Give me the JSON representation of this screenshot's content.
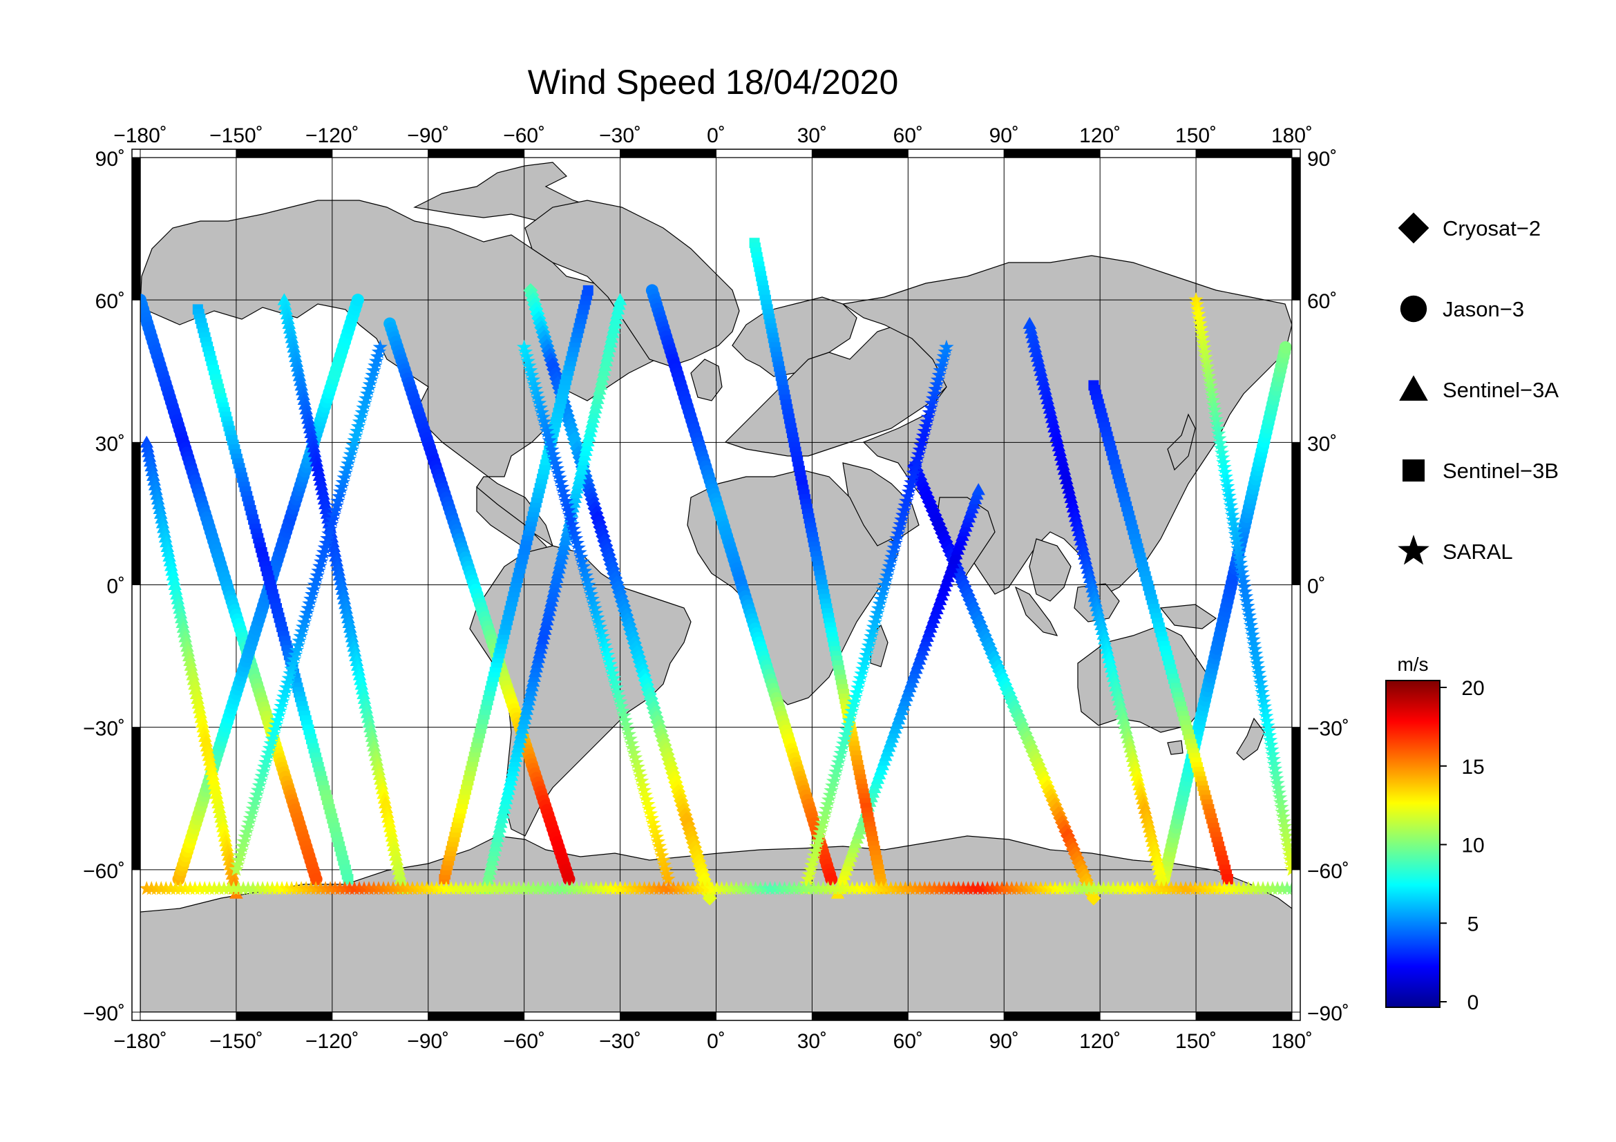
{
  "title": "Wind Speed 18/04/2020",
  "map": {
    "lon_range": [
      -180,
      180
    ],
    "lat_range": [
      -90,
      90
    ],
    "lon_ticks": [
      -180,
      -150,
      -120,
      -90,
      -60,
      -30,
      0,
      30,
      60,
      90,
      120,
      150,
      180
    ],
    "lat_ticks": [
      -90,
      -60,
      -30,
      0,
      30,
      60,
      90
    ],
    "lon_tick_labels": [
      "−180˚",
      "−150˚",
      "−120˚",
      "−90˚",
      "−60˚",
      "−30˚",
      "0˚",
      "30˚",
      "60˚",
      "90˚",
      "120˚",
      "150˚",
      "180˚"
    ],
    "lat_tick_labels": [
      "−90˚",
      "−60˚",
      "−30˚",
      "0˚",
      "30˚",
      "60˚",
      "90˚"
    ],
    "grid": true,
    "ocean_color": "#ffffff",
    "land_color": "#bebebe",
    "coast_color": "#000000"
  },
  "legend": {
    "placement": "right",
    "items": [
      {
        "label": "Cryosat−2",
        "marker": "diamond-icon"
      },
      {
        "label": "Jason−3",
        "marker": "circle-icon"
      },
      {
        "label": "Sentinel−3A",
        "marker": "triangle-icon"
      },
      {
        "label": "Sentinel−3B",
        "marker": "square-icon"
      },
      {
        "label": "SARAL",
        "marker": "star-icon"
      }
    ]
  },
  "colorbar": {
    "unit": "m/s",
    "min": 0,
    "max": 20,
    "ticks": [
      0,
      5,
      10,
      15,
      20
    ],
    "tick_labels": [
      "0",
      "5",
      "10",
      "15",
      "20"
    ],
    "colormap": "jet",
    "colors": [
      "#00008f",
      "#0000ff",
      "#007fff",
      "#00ffff",
      "#7fff7f",
      "#ffff00",
      "#ff7f00",
      "#ff0000",
      "#7f0000"
    ]
  },
  "chart_data": {
    "type": "scatter",
    "title": "Wind Speed 18/04/2020",
    "xlabel": "",
    "ylabel": "",
    "xlim": [
      -180,
      180
    ],
    "ylim": [
      -90,
      90
    ],
    "value_unit": "m/s",
    "series": [
      {
        "name": "Cryosat−2",
        "tracks": [
          {
            "start": [
              -58,
              62
            ],
            "end": [
              -2,
              -66
            ],
            "values": [
              9,
              4,
              6,
              3,
              5,
              7,
              11,
              14,
              12
            ]
          },
          {
            "start": [
              62,
              25
            ],
            "end": [
              118,
              -66
            ],
            "values": [
              3,
              2,
              4,
              6,
              9,
              12,
              16,
              13
            ]
          }
        ]
      },
      {
        "name": "Jason−3",
        "tracks": [
          {
            "start": [
              -180,
              60
            ],
            "end": [
              -125,
              -62
            ],
            "values": [
              5,
              4,
              3,
              5,
              6,
              9,
              12,
              15,
              16
            ]
          },
          {
            "start": [
              -168,
              -62
            ],
            "end": [
              -112,
              60
            ],
            "values": [
              14,
              11,
              8,
              6,
              5,
              4,
              6,
              8,
              7
            ]
          },
          {
            "start": [
              -102,
              55
            ],
            "end": [
              -46,
              -62
            ],
            "values": [
              6,
              4,
              3,
              5,
              8,
              11,
              14,
              17,
              18
            ]
          },
          {
            "start": [
              -20,
              62
            ],
            "end": [
              36,
              -62
            ],
            "values": [
              5,
              3,
              4,
              6,
              5,
              8,
              12,
              15,
              17
            ]
          },
          {
            "start": [
              140,
              -62
            ],
            "end": [
              178,
              50
            ],
            "values": [
              12,
              9,
              7,
              5,
              4,
              6,
              8,
              10
            ]
          }
        ]
      },
      {
        "name": "Sentinel−3A",
        "tracks": [
          {
            "start": [
              -178,
              30
            ],
            "end": [
              -150,
              -65
            ],
            "values": [
              4,
              6,
              8,
              11,
              13,
              12,
              15
            ]
          },
          {
            "start": [
              -135,
              60
            ],
            "end": [
              -98,
              -64
            ],
            "values": [
              7,
              5,
              3,
              4,
              6,
              9,
              13,
              11
            ]
          },
          {
            "start": [
              -72,
              -64
            ],
            "end": [
              -30,
              60
            ],
            "values": [
              10,
              8,
              6,
              4,
              5,
              7,
              9,
              8
            ]
          },
          {
            "start": [
              38,
              -65
            ],
            "end": [
              82,
              20
            ],
            "values": [
              13,
              10,
              7,
              5,
              3,
              2,
              4
            ]
          },
          {
            "start": [
              98,
              55
            ],
            "end": [
              140,
              -64
            ],
            "values": [
              4,
              3,
              2,
              4,
              7,
              10,
              14,
              12
            ]
          }
        ]
      },
      {
        "name": "Sentinel−3B",
        "tracks": [
          {
            "start": [
              -162,
              58
            ],
            "end": [
              -115,
              -62
            ],
            "values": [
              6,
              8,
              5,
              3,
              4,
              7,
              10,
              9
            ]
          },
          {
            "start": [
              -85,
              -62
            ],
            "end": [
              -40,
              62
            ],
            "values": [
              15,
              12,
              9,
              6,
              5,
              7,
              6,
              4
            ]
          },
          {
            "start": [
              12,
              72
            ],
            "end": [
              52,
              -64
            ],
            "values": [
              8,
              6,
              4,
              3,
              5,
              8,
              13,
              16,
              14
            ]
          },
          {
            "start": [
              118,
              42
            ],
            "end": [
              160,
              -62
            ],
            "values": [
              3,
              4,
              5,
              6,
              8,
              11,
              15,
              17
            ]
          }
        ]
      },
      {
        "name": "SARAL",
        "tracks": [
          {
            "start": [
              -150,
              -60
            ],
            "end": [
              -105,
              50
            ],
            "values": [
              11,
              9,
              7,
              5,
              4,
              6,
              5
            ]
          },
          {
            "start": [
              -60,
              50
            ],
            "end": [
              -15,
              -62
            ],
            "values": [
              7,
              5,
              4,
              6,
              9,
              12,
              14
            ]
          },
          {
            "start": [
              28,
              -64
            ],
            "end": [
              72,
              50
            ],
            "values": [
              12,
              10,
              8,
              6,
              4,
              3,
              5
            ]
          },
          {
            "start": [
              150,
              60
            ],
            "end": [
              180,
              -60
            ],
            "values": [
              13,
              10,
              7,
              5,
              6,
              9,
              12
            ]
          },
          {
            "start": [
              -178,
              -64
            ],
            "end": [
              180,
              -64
            ],
            "values": [
              14,
              11,
              16,
              12,
              10,
              15,
              9,
              13,
              17,
              11,
              14,
              10
            ]
          }
        ]
      }
    ]
  }
}
